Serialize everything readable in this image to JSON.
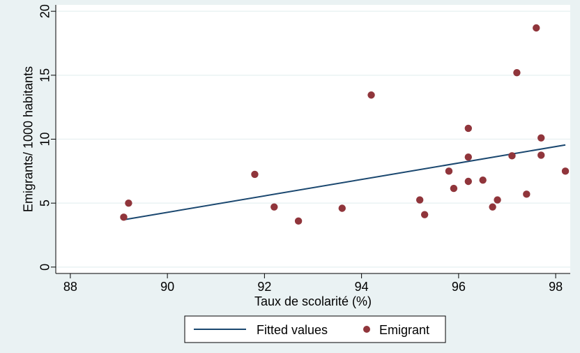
{
  "chart_data": {
    "type": "scatter",
    "title": "",
    "xlabel": "Taux de scolarité (%)",
    "ylabel": "Emigrants/ 1000 habitants",
    "xlim": [
      87.7,
      98.3
    ],
    "ylim": [
      -0.5,
      20.5
    ],
    "xticks": [
      88,
      90,
      92,
      94,
      96,
      98
    ],
    "yticks": [
      0,
      5,
      10,
      15,
      20
    ],
    "grid": true,
    "legend_position": "bottom",
    "colors": {
      "fit_line": "#1a476f",
      "points": "#90353b",
      "plot_bg": "#ffffff",
      "outer_bg": "#eaf2f3"
    },
    "series": [
      {
        "name": "Fitted values",
        "kind": "line",
        "x": [
          89.1,
          98.2
        ],
        "y": [
          3.7,
          9.55
        ]
      },
      {
        "name": "Emigrant",
        "kind": "scatter",
        "x": [
          89.1,
          89.2,
          91.8,
          92.2,
          92.7,
          93.6,
          94.2,
          95.2,
          95.3,
          95.8,
          95.9,
          96.2,
          96.2,
          96.2,
          96.5,
          96.7,
          96.8,
          97.1,
          97.2,
          97.4,
          97.6,
          97.7,
          97.7,
          98.2
        ],
        "y": [
          3.9,
          5.0,
          7.25,
          4.7,
          3.6,
          4.6,
          13.45,
          5.25,
          4.1,
          7.5,
          6.15,
          10.85,
          8.6,
          6.7,
          6.8,
          4.7,
          5.25,
          8.7,
          15.2,
          5.7,
          18.7,
          10.1,
          8.75,
          7.5
        ]
      }
    ]
  }
}
